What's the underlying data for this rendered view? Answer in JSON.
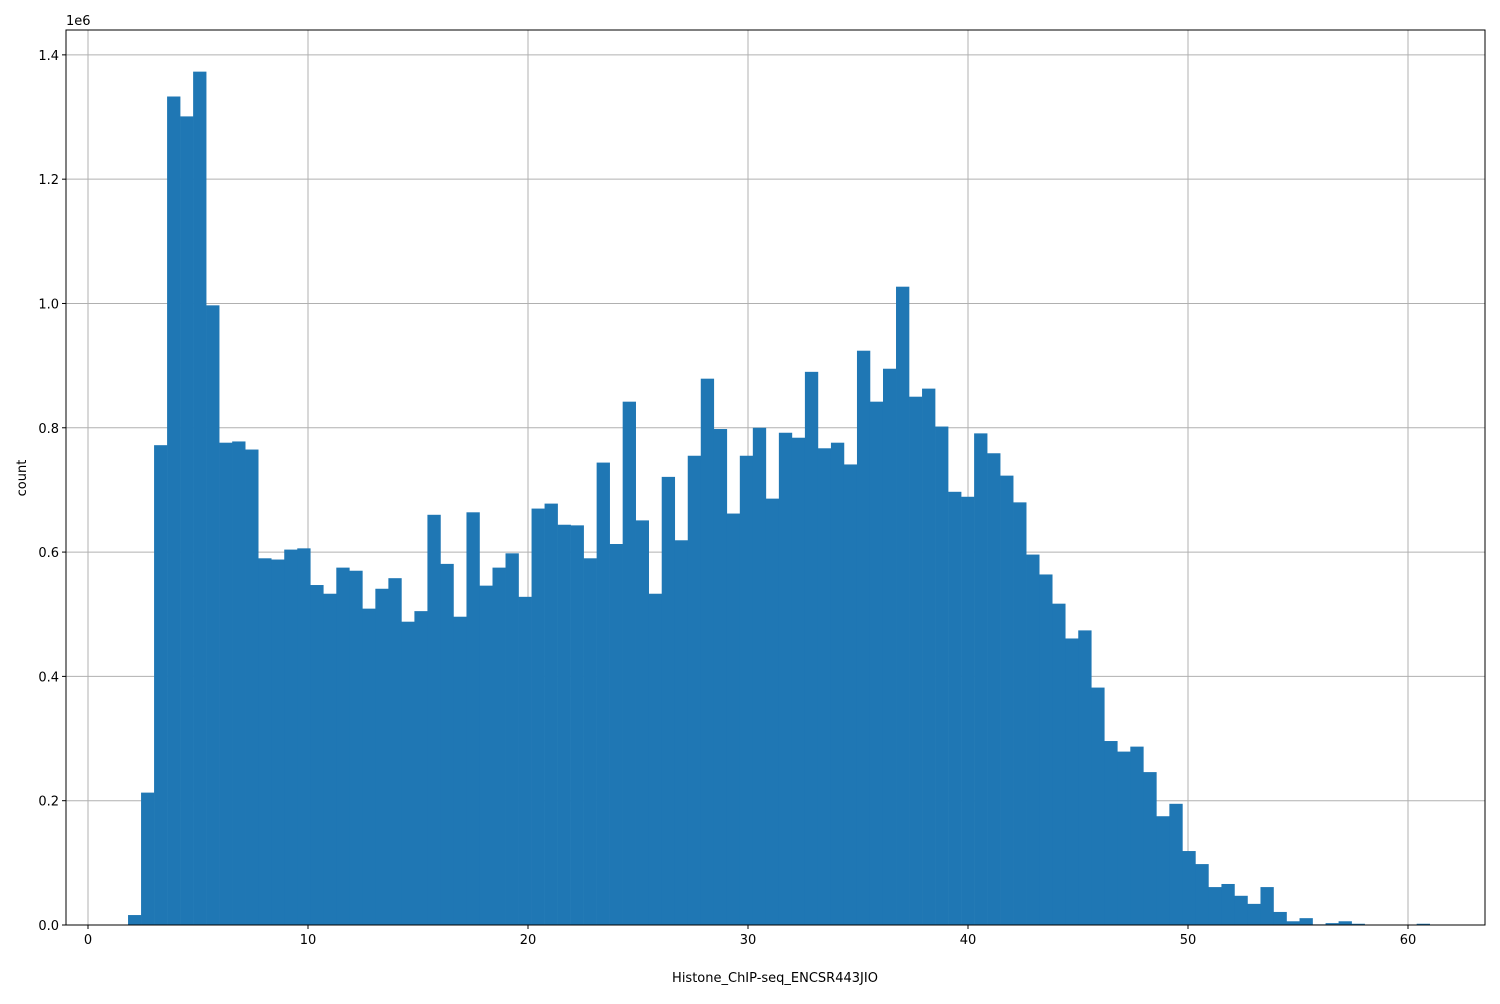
{
  "chart_data": {
    "type": "bar",
    "subtype": "histogram",
    "xlabel": "Histone_ChIP-seq_ENCSR443JIO",
    "ylabel": "count",
    "y_offset_label": "1e6",
    "xlim": [
      -1,
      63.5
    ],
    "ylim": [
      0,
      1.44
    ],
    "y_scale_multiplier": 1000000,
    "grid": true,
    "bar_color": "#1f77b4",
    "bin_range": [
      1.82,
      60.4
    ],
    "bin_count": 100,
    "x_ticks": [
      "0",
      "10",
      "20",
      "30",
      "40",
      "50",
      "60"
    ],
    "x_tick_values": [
      0,
      10,
      20,
      30,
      40,
      50,
      60
    ],
    "y_ticks": [
      "0.0",
      "0.2",
      "0.4",
      "0.6",
      "0.8",
      "1.0",
      "1.2",
      "1.4"
    ],
    "y_tick_values": [
      0,
      0.2,
      0.4,
      0.6,
      0.8,
      1.0,
      1.2,
      1.4
    ],
    "values": [
      0.016,
      0.213,
      0.772,
      1.333,
      1.301,
      1.373,
      0.997,
      0.776,
      0.778,
      0.765,
      0.59,
      0.588,
      0.604,
      0.606,
      0.547,
      0.533,
      0.575,
      0.57,
      0.509,
      0.541,
      0.558,
      0.488,
      0.505,
      0.66,
      0.581,
      0.496,
      0.664,
      0.546,
      0.575,
      0.598,
      0.528,
      0.67,
      0.678,
      0.644,
      0.643,
      0.59,
      0.744,
      0.613,
      0.842,
      0.651,
      0.533,
      0.721,
      0.619,
      0.755,
      0.879,
      0.798,
      0.662,
      0.755,
      0.8,
      0.686,
      0.792,
      0.784,
      0.89,
      0.767,
      0.776,
      0.741,
      0.924,
      0.842,
      0.895,
      1.027,
      0.85,
      0.863,
      0.802,
      0.697,
      0.689,
      0.791,
      0.759,
      0.723,
      0.68,
      0.596,
      0.564,
      0.517,
      0.461,
      0.474,
      0.382,
      0.296,
      0.279,
      0.287,
      0.246,
      0.175,
      0.195,
      0.119,
      0.098,
      0.061,
      0.066,
      0.047,
      0.034,
      0.061,
      0.021,
      0.006,
      0.011,
      0.001,
      0.003,
      0.006,
      0.002,
      0,
      0,
      0,
      0,
      0.002
    ]
  }
}
